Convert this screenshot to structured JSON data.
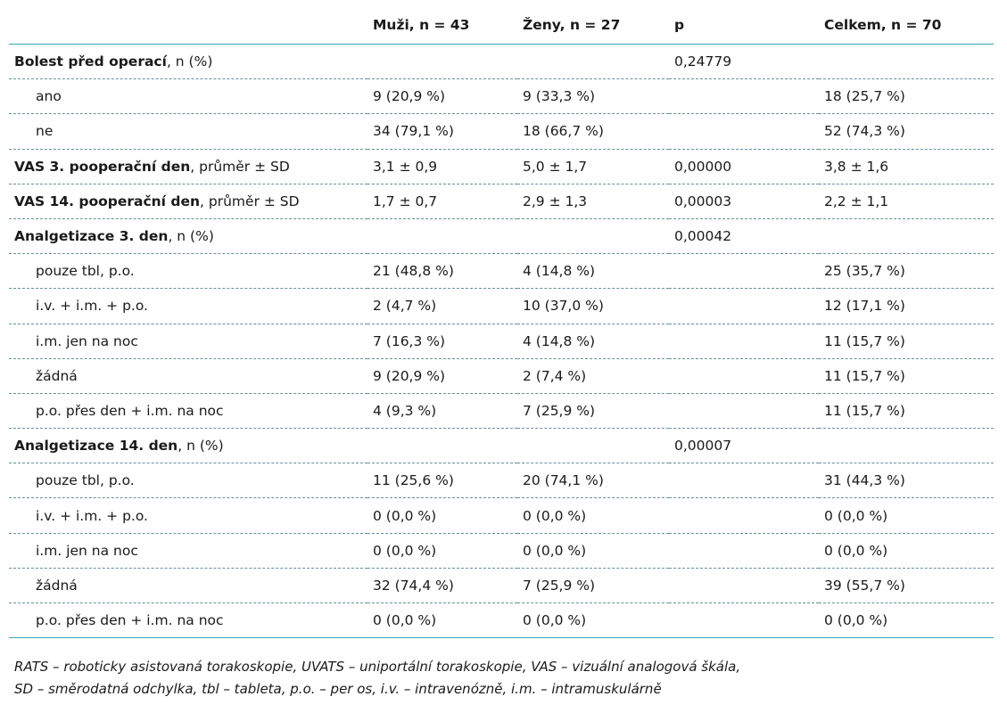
{
  "header": {
    "col0": "",
    "col1": "Muži, n = 43",
    "col2": "Ženy, n = 27",
    "col3": "p",
    "col4": "Celkem, n = 70"
  },
  "rows": [
    {
      "label_bold": "Bolest před operací",
      "label_rest": ", n (%)",
      "sub": false,
      "muzi": "",
      "zeny": "",
      "p": "0,24779",
      "celkem": ""
    },
    {
      "label_bold": "",
      "label_rest": "ano",
      "sub": true,
      "muzi": "9 (20,9 %)",
      "zeny": "9 (33,3 %)",
      "p": "",
      "celkem": "18 (25,7 %)"
    },
    {
      "label_bold": "",
      "label_rest": "ne",
      "sub": true,
      "muzi": "34 (79,1 %)",
      "zeny": "18 (66,7 %)",
      "p": "",
      "celkem": "52 (74,3 %)"
    },
    {
      "label_bold": "VAS 3. pooperační den",
      "label_rest": ", průměr ± SD",
      "sub": false,
      "muzi": "3,1 ± 0,9",
      "zeny": "5,0 ± 1,7",
      "p": "0,00000",
      "celkem": "3,8 ± 1,6"
    },
    {
      "label_bold": "VAS 14. pooperační den",
      "label_rest": ", průměr ± SD",
      "sub": false,
      "muzi": "1,7 ± 0,7",
      "zeny": "2,9 ± 1,3",
      "p": "0,00003",
      "celkem": "2,2 ± 1,1"
    },
    {
      "label_bold": "Analgetizace 3. den",
      "label_rest": ", n (%)",
      "sub": false,
      "muzi": "",
      "zeny": "",
      "p": "0,00042",
      "celkem": ""
    },
    {
      "label_bold": "",
      "label_rest": "pouze tbl, p.o.",
      "sub": true,
      "muzi": "21 (48,8 %)",
      "zeny": "4 (14,8 %)",
      "p": "",
      "celkem": "25 (35,7 %)"
    },
    {
      "label_bold": "",
      "label_rest": "i.v. + i.m. + p.o.",
      "sub": true,
      "muzi": "2 (4,7 %)",
      "zeny": "10 (37,0 %)",
      "p": "",
      "celkem": "12 (17,1 %)"
    },
    {
      "label_bold": "",
      "label_rest": "i.m. jen na noc",
      "sub": true,
      "muzi": "7 (16,3 %)",
      "zeny": "4 (14,8 %)",
      "p": "",
      "celkem": "11 (15,7 %)"
    },
    {
      "label_bold": "",
      "label_rest": "žádná",
      "sub": true,
      "muzi": "9 (20,9 %)",
      "zeny": "2 (7,4 %)",
      "p": "",
      "celkem": "11 (15,7 %)"
    },
    {
      "label_bold": "",
      "label_rest": "p.o. přes den + i.m. na noc",
      "sub": true,
      "muzi": "4 (9,3 %)",
      "zeny": "7 (25,9 %)",
      "p": "",
      "celkem": "11 (15,7 %)"
    },
    {
      "label_bold": "Analgetizace 14. den",
      "label_rest": ", n (%)",
      "sub": false,
      "muzi": "",
      "zeny": "",
      "p": "0,00007",
      "celkem": ""
    },
    {
      "label_bold": "",
      "label_rest": "pouze tbl, p.o.",
      "sub": true,
      "muzi": "11 (25,6 %)",
      "zeny": "20 (74,1 %)",
      "p": "",
      "celkem": "31 (44,3 %)"
    },
    {
      "label_bold": "",
      "label_rest": "i.v. + i.m. + p.o.",
      "sub": true,
      "muzi": "0 (0,0 %)",
      "zeny": "0 (0,0 %)",
      "p": "",
      "celkem": "0 (0,0 %)"
    },
    {
      "label_bold": "",
      "label_rest": "i.m. jen na noc",
      "sub": true,
      "muzi": "0 (0,0 %)",
      "zeny": "0 (0,0 %)",
      "p": "",
      "celkem": "0 (0,0 %)"
    },
    {
      "label_bold": "",
      "label_rest": "žádná",
      "sub": true,
      "muzi": "32 (74,4 %)",
      "zeny": "7 (25,9 %)",
      "p": "",
      "celkem": "39 (55,7 %)"
    },
    {
      "label_bold": "",
      "label_rest": "p.o. přes den + i.m. na noc",
      "sub": true,
      "muzi": "0 (0,0 %)",
      "zeny": "0 (0,0 %)",
      "p": "",
      "celkem": "0 (0,0 %)"
    }
  ],
  "footnote": {
    "line1": "RATS – roboticky asistovaná torakoskopie, UVATS – uniportální torakoskopie, VAS – vizuální analogová škála,",
    "line2": "SD – směrodatná odchylka, tbl – tableta, p.o. – per os, i.v. – intravenózně, i.m. – intramuskulárně"
  },
  "colors": {
    "rule_accent": "#3aa6b3",
    "row_divider": "#6a8f99",
    "text": "#1a1a1a"
  }
}
